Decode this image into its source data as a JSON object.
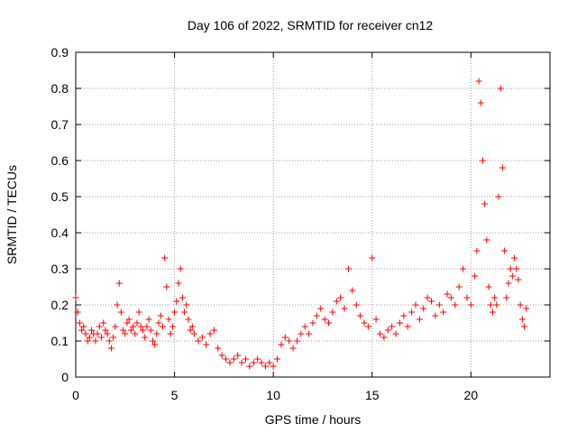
{
  "chart_data": {
    "type": "scatter",
    "title": "Day 106 of 2022, SRMTID for receiver cn12",
    "xlabel": "GPS time / hours",
    "ylabel": "SRMTID / TECUs",
    "xlim": [
      0,
      24
    ],
    "ylim": [
      0,
      0.9
    ],
    "xticks": [
      0,
      5,
      10,
      15,
      20
    ],
    "xtick_labels": [
      "0",
      "5",
      "10",
      "15",
      "20"
    ],
    "yticks": [
      0,
      0.1,
      0.2,
      0.3,
      0.4,
      0.5,
      0.6,
      0.7,
      0.8,
      0.9
    ],
    "ytick_labels": [
      "0",
      "0.1",
      "0.2",
      "0.3",
      "0.4",
      "0.5",
      "0.6",
      "0.7",
      "0.8",
      "0.9"
    ],
    "grid": true,
    "marker": "+",
    "series": [
      {
        "name": "SRMTID",
        "color": "#ff0000",
        "x": [
          0.0,
          0.1,
          0.2,
          0.3,
          0.4,
          0.5,
          0.6,
          0.7,
          0.8,
          0.9,
          1.0,
          1.1,
          1.2,
          1.3,
          1.4,
          1.5,
          1.6,
          1.7,
          1.8,
          1.9,
          2.0,
          2.1,
          2.2,
          2.3,
          2.4,
          2.5,
          2.6,
          2.7,
          2.8,
          2.9,
          3.0,
          3.1,
          3.2,
          3.3,
          3.4,
          3.5,
          3.6,
          3.7,
          3.8,
          3.9,
          4.0,
          4.1,
          4.2,
          4.3,
          4.4,
          4.5,
          4.6,
          4.7,
          4.8,
          4.9,
          5.0,
          5.1,
          5.2,
          5.3,
          5.4,
          5.5,
          5.6,
          5.7,
          5.8,
          5.9,
          6.0,
          6.2,
          6.4,
          6.6,
          6.8,
          7.0,
          7.2,
          7.4,
          7.6,
          7.8,
          8.0,
          8.2,
          8.4,
          8.6,
          8.8,
          9.0,
          9.2,
          9.4,
          9.6,
          9.8,
          10.0,
          10.2,
          10.4,
          10.6,
          10.8,
          11.0,
          11.2,
          11.4,
          11.6,
          11.8,
          12.0,
          12.2,
          12.4,
          12.6,
          12.8,
          13.0,
          13.2,
          13.4,
          13.6,
          13.8,
          14.0,
          14.2,
          14.4,
          14.6,
          14.8,
          15.0,
          15.2,
          15.4,
          15.6,
          15.8,
          16.0,
          16.2,
          16.4,
          16.6,
          16.8,
          17.0,
          17.2,
          17.4,
          17.6,
          17.8,
          18.0,
          18.2,
          18.4,
          18.6,
          18.8,
          19.0,
          19.2,
          19.4,
          19.6,
          19.8,
          20.0,
          20.2,
          20.3,
          20.4,
          20.5,
          20.6,
          20.7,
          20.8,
          20.9,
          21.0,
          21.1,
          21.2,
          21.3,
          21.4,
          21.5,
          21.6,
          21.7,
          21.8,
          21.9,
          22.0,
          22.1,
          22.2,
          22.3,
          22.4,
          22.5,
          22.6,
          22.7,
          22.8
        ],
        "y": [
          0.22,
          0.18,
          0.15,
          0.13,
          0.14,
          0.12,
          0.1,
          0.11,
          0.13,
          0.12,
          0.1,
          0.12,
          0.14,
          0.11,
          0.15,
          0.13,
          0.12,
          0.1,
          0.08,
          0.11,
          0.14,
          0.2,
          0.26,
          0.18,
          0.13,
          0.12,
          0.15,
          0.16,
          0.13,
          0.14,
          0.12,
          0.15,
          0.18,
          0.14,
          0.13,
          0.11,
          0.14,
          0.16,
          0.13,
          0.1,
          0.09,
          0.12,
          0.15,
          0.17,
          0.14,
          0.33,
          0.25,
          0.16,
          0.12,
          0.14,
          0.18,
          0.21,
          0.26,
          0.3,
          0.22,
          0.18,
          0.2,
          0.16,
          0.13,
          0.14,
          0.12,
          0.1,
          0.11,
          0.09,
          0.12,
          0.13,
          0.08,
          0.06,
          0.05,
          0.04,
          0.05,
          0.06,
          0.04,
          0.05,
          0.03,
          0.04,
          0.05,
          0.04,
          0.03,
          0.04,
          0.03,
          0.05,
          0.09,
          0.11,
          0.1,
          0.08,
          0.1,
          0.12,
          0.14,
          0.12,
          0.15,
          0.17,
          0.19,
          0.16,
          0.15,
          0.18,
          0.21,
          0.22,
          0.19,
          0.3,
          0.24,
          0.2,
          0.17,
          0.15,
          0.14,
          0.33,
          0.16,
          0.12,
          0.11,
          0.13,
          0.14,
          0.12,
          0.15,
          0.17,
          0.14,
          0.18,
          0.2,
          0.16,
          0.19,
          0.22,
          0.21,
          0.17,
          0.2,
          0.18,
          0.23,
          0.22,
          0.2,
          0.25,
          0.3,
          0.22,
          0.2,
          0.28,
          0.35,
          0.82,
          0.76,
          0.6,
          0.48,
          0.38,
          0.25,
          0.2,
          0.18,
          0.22,
          0.2,
          0.5,
          0.8,
          0.58,
          0.35,
          0.22,
          0.26,
          0.3,
          0.28,
          0.33,
          0.3,
          0.27,
          0.2,
          0.16,
          0.14,
          0.19
        ]
      }
    ]
  }
}
